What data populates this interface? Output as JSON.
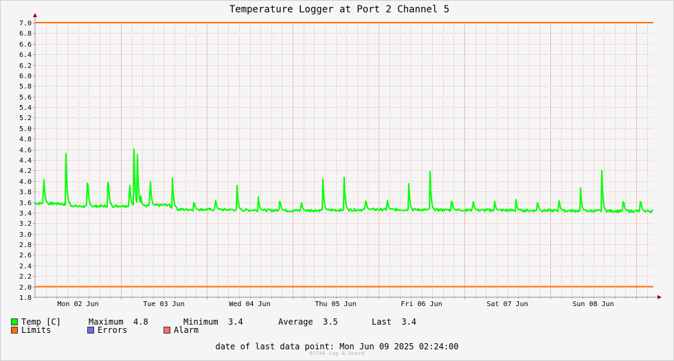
{
  "colors": {
    "temp": "#00ff00",
    "limits": "#ff7000",
    "errors": "#6b6bff",
    "alarm": "#ff6b6b",
    "grid": "#f0a0a0",
    "axis": "#999999",
    "arrow": "#990000"
  },
  "legend": {
    "temp_label": "Temp [C]",
    "maximum_label": "Maximum",
    "maximum_value": "4.8",
    "minimum_label": "Minimum",
    "minimum_value": "3.4",
    "average_label": "Average",
    "average_value": "3.5",
    "last_label": "Last",
    "last_value": "3.4",
    "limits_label": "Limits",
    "errors_label": "Errors",
    "alarm_label": "Alarm"
  },
  "footer": {
    "last_point_label": "date of last data point:",
    "last_point_value": "Mon Jun 09 2025 02:24:00",
    "watermark": "OCTAA Log & Guard"
  },
  "chart_data": {
    "type": "line",
    "title": "Temperature Logger at Port 2 Channel 5",
    "xlabel": "",
    "ylabel": "",
    "ylim": [
      1.8,
      7.0
    ],
    "yticks": [
      "7.0",
      "6.8",
      "6.6",
      "6.4",
      "6.2",
      "6.0",
      "5.8",
      "5.6",
      "5.4",
      "5.2",
      "5.0",
      "4.8",
      "4.6",
      "4.4",
      "4.2",
      "4.0",
      "3.8",
      "3.6",
      "3.4",
      "3.2",
      "3.0",
      "2.8",
      "2.6",
      "2.4",
      "2.2",
      "2.0",
      "1.8"
    ],
    "xlim_days": [
      0,
      7.2
    ],
    "xticks": [
      {
        "day": 0.5,
        "label": "Mon 02 Jun"
      },
      {
        "day": 1.5,
        "label": "Tue 03 Jun"
      },
      {
        "day": 2.5,
        "label": "Wed 04 Jun"
      },
      {
        "day": 3.5,
        "label": "Thu 05 Jun"
      },
      {
        "day": 4.5,
        "label": "Fri 06 Jun"
      },
      {
        "day": 5.5,
        "label": "Sat 07 Jun"
      },
      {
        "day": 6.5,
        "label": "Sun 08 Jun"
      }
    ],
    "day_boundaries": [
      0,
      1,
      2,
      3,
      4,
      5,
      6,
      7
    ],
    "grid": true,
    "limits": {
      "upper": 7.0,
      "lower": 2.0
    },
    "series": [
      {
        "name": "Temp [C]",
        "baseline": [
          [
            0.0,
            3.58
          ],
          [
            0.3,
            3.57
          ],
          [
            0.5,
            3.52
          ],
          [
            1.0,
            3.53
          ],
          [
            1.3,
            3.53
          ],
          [
            1.55,
            3.55
          ],
          [
            1.63,
            3.46
          ],
          [
            2.0,
            3.46
          ],
          [
            3.0,
            3.44
          ],
          [
            4.0,
            3.46
          ],
          [
            5.0,
            3.45
          ],
          [
            6.0,
            3.44
          ],
          [
            7.0,
            3.43
          ],
          [
            7.2,
            3.43
          ]
        ],
        "peaks": [
          [
            0.1,
            4.2
          ],
          [
            0.36,
            4.52
          ],
          [
            0.61,
            4.18
          ],
          [
            0.85,
            4.2
          ],
          [
            1.1,
            4.07
          ],
          [
            1.15,
            4.8
          ],
          [
            1.19,
            4.68
          ],
          [
            1.23,
            3.75
          ],
          [
            1.34,
            4.17
          ],
          [
            1.6,
            4.05
          ],
          [
            1.85,
            3.65
          ],
          [
            2.1,
            3.7
          ],
          [
            2.35,
            4.0
          ],
          [
            2.6,
            3.7
          ],
          [
            2.85,
            3.7
          ],
          [
            3.1,
            3.65
          ],
          [
            3.35,
            4.14
          ],
          [
            3.6,
            4.07
          ],
          [
            3.85,
            3.7
          ],
          [
            4.1,
            3.7
          ],
          [
            4.35,
            4.04
          ],
          [
            4.6,
            4.18
          ],
          [
            4.85,
            3.7
          ],
          [
            5.1,
            3.67
          ],
          [
            5.35,
            3.65
          ],
          [
            5.6,
            3.65
          ],
          [
            5.85,
            3.65
          ],
          [
            6.1,
            3.7
          ],
          [
            6.35,
            3.95
          ],
          [
            6.6,
            4.2
          ],
          [
            6.85,
            3.7
          ],
          [
            7.05,
            3.7
          ]
        ]
      }
    ]
  }
}
